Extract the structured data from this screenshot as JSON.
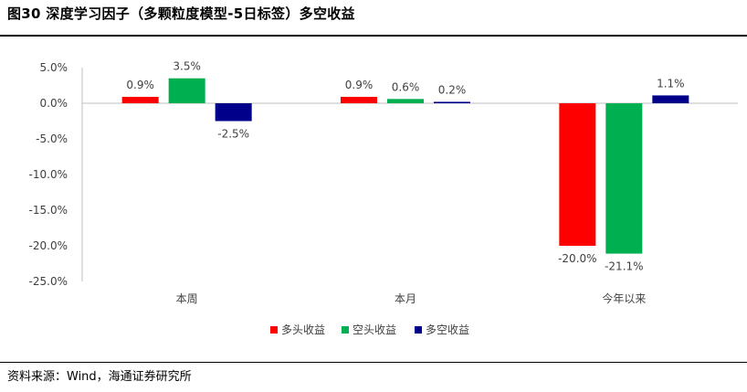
{
  "title": "图30 深度学习因子（多颗粒度模型-5日标签）多空收益",
  "source": "资料来源：Wind，海通证券研究所",
  "chart_data": {
    "type": "bar",
    "categories": [
      "本周",
      "本月",
      "今年以来"
    ],
    "series": [
      {
        "name": "多头收益",
        "color": "#ff0000",
        "values": [
          0.9,
          0.9,
          -20.0
        ],
        "labels": [
          "0.9%",
          "0.9%",
          "-20.0%"
        ]
      },
      {
        "name": "空头收益",
        "color": "#00b050",
        "values": [
          3.5,
          0.6,
          -21.1
        ],
        "labels": [
          "3.5%",
          "0.6%",
          "-21.1%"
        ]
      },
      {
        "name": "多空收益",
        "color": "#00008b",
        "values": [
          -2.5,
          0.2,
          1.1
        ],
        "labels": [
          "-2.5%",
          "0.2%",
          "1.1%"
        ]
      }
    ],
    "ylim": [
      -25,
      5
    ],
    "yticks": [
      5,
      0,
      -5,
      -10,
      -15,
      -20,
      -25
    ],
    "ytick_labels": [
      "5.0%",
      "0.0%",
      "-5.0%",
      "-10.0%",
      "-15.0%",
      "-20.0%",
      "-25.0%"
    ],
    "grid": false,
    "legend": "bottom-center"
  }
}
